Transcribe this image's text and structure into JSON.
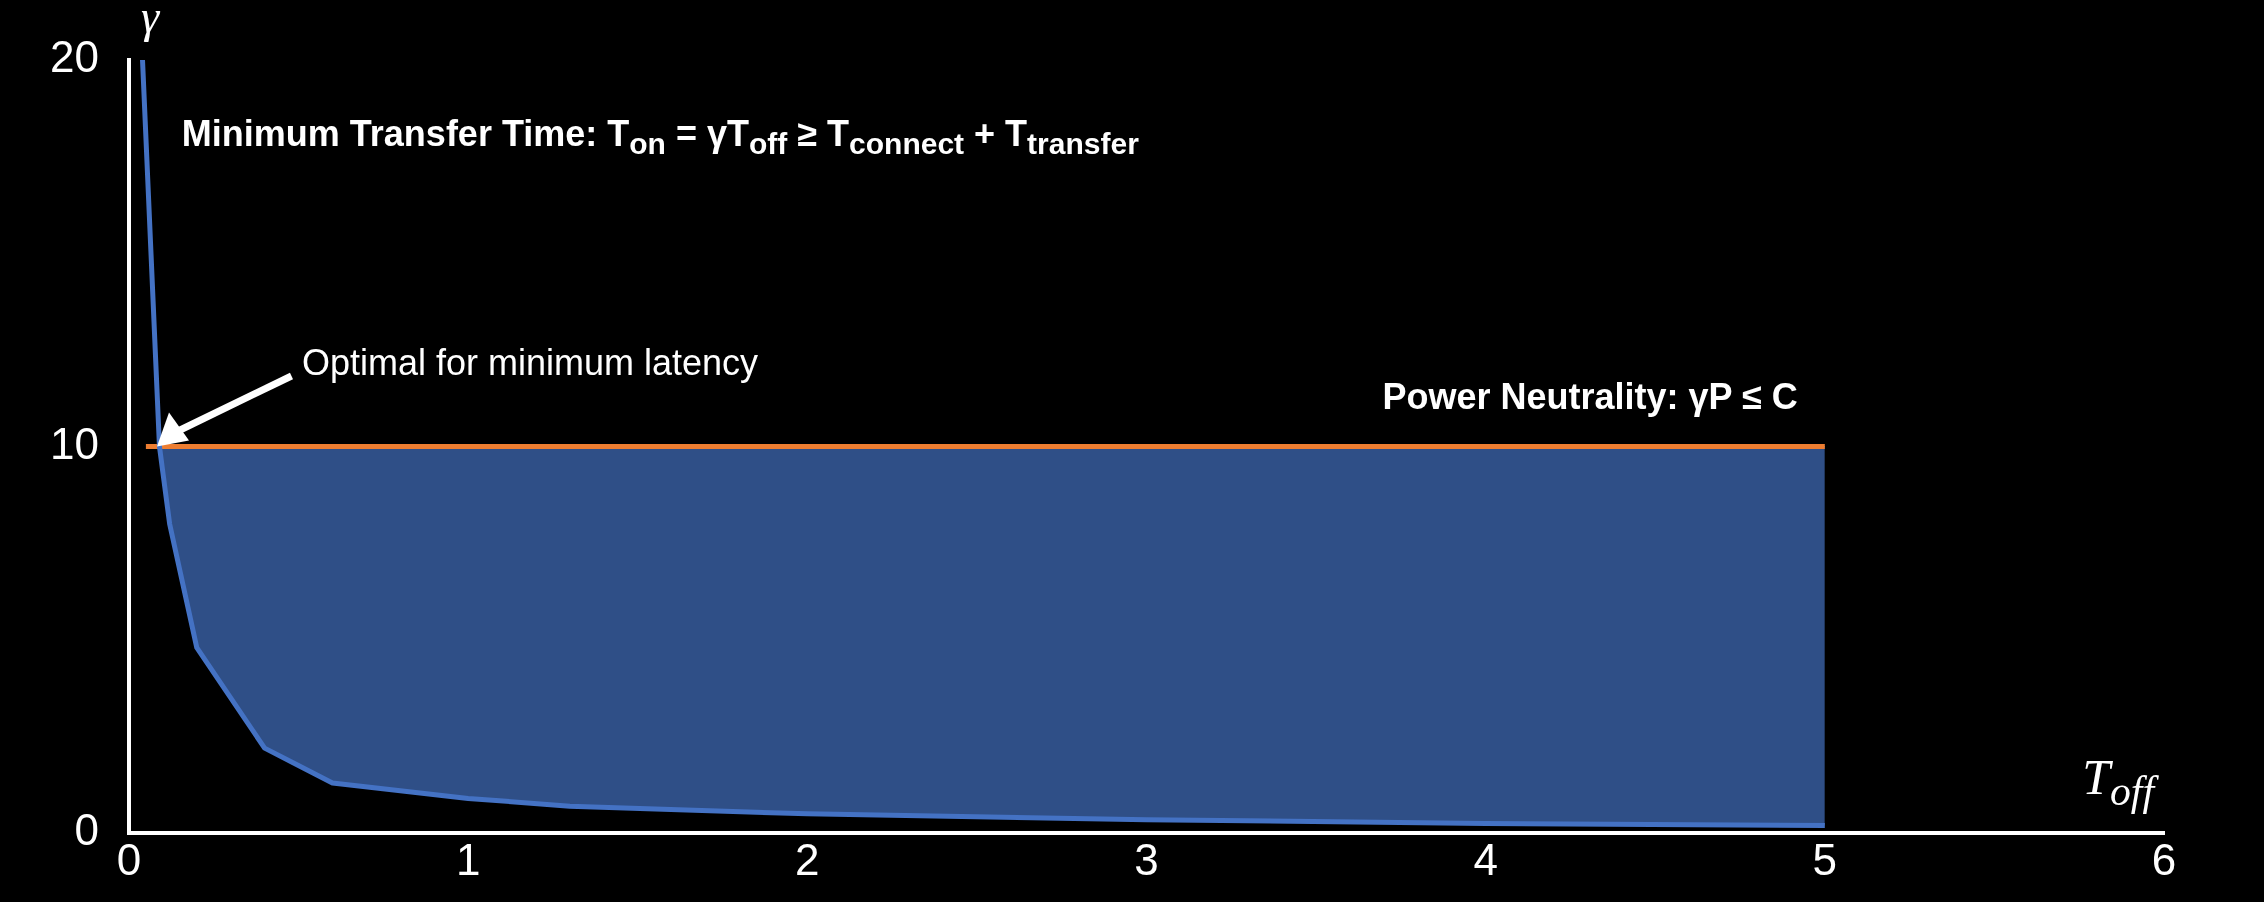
{
  "chart_data": {
    "type": "line",
    "xlabel": "T$_{off}$",
    "ylabel": "γ",
    "xlim": [
      0,
      6
    ],
    "xticks": [
      0,
      1,
      2,
      3,
      4,
      5,
      6
    ],
    "ylim": [
      0,
      20
    ],
    "yticks": [
      0,
      10,
      20
    ],
    "grid": false,
    "legend": false,
    "marker": "none",
    "series": [
      {
        "color": "#4472c4",
        "x": [
          0.04,
          0.09,
          0.12,
          0.2,
          0.4,
          0.6,
          1,
          1.3,
          2,
          3,
          4,
          5
        ],
        "values": [
          20,
          10,
          8,
          4.8,
          2.2,
          1.3,
          0.9,
          0.7,
          0.5,
          0.35,
          0.25,
          0.2
        ]
      },
      {
        "color": "#ed7d31",
        "x": [
          0.05,
          5
        ],
        "values": [
          10,
          10
        ]
      },
      {
        "type": "area",
        "color": "#4472c4",
        "x": [
          0.09,
          0.12,
          0.2,
          0.4,
          0.6,
          1,
          1.3,
          2,
          3,
          4,
          5
        ],
        "values": [
          10,
          10,
          10,
          10,
          10,
          10,
          10,
          10,
          10,
          10,
          10
        ]
      }
    ],
    "annotations": [
      "Minimum Transfer Time: T$_{on}$ = γT$_{off}$ ≥ T$_{connect}$ + T$_{transfer}$",
      "Optimal for minimum latency",
      "Power Neutrality: γP ≤ C"
    ]
  }
}
